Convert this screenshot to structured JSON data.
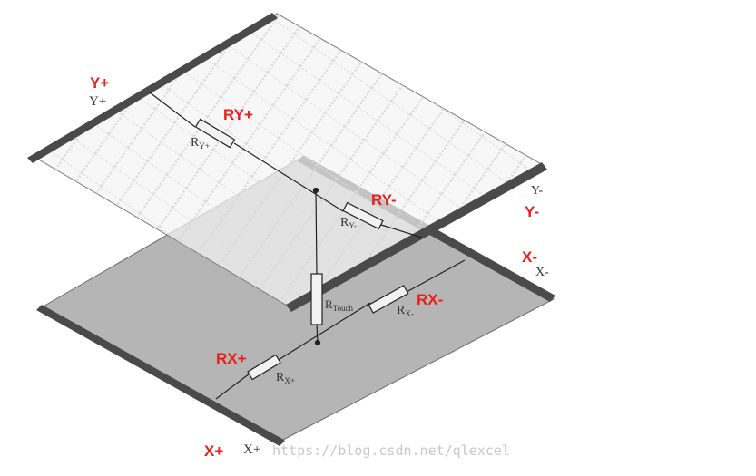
{
  "diagram": {
    "red_labels": {
      "y_plus": "Y+",
      "ry_plus": "RY+",
      "ry_minus": "RY-",
      "y_minus": "Y-",
      "x_minus": "X-",
      "rx_minus": "RX-",
      "rx_plus": "RX+",
      "x_plus": "X+"
    },
    "scan_labels": {
      "y_plus": "Y+",
      "y_minus": "Y-",
      "x_minus": "X-",
      "x_plus": "X+"
    },
    "resistor_labels": {
      "r_y_plus": "R",
      "r_y_plus_sub": "Y+",
      "r_y_minus": "R",
      "r_y_minus_sub": "Y-",
      "r_touch": "R",
      "r_touch_sub": "Touch",
      "r_x_minus": "R",
      "r_x_minus_sub": "X-",
      "r_x_plus": "R",
      "r_x_plus_sub": "X+"
    },
    "watermark": "https://blog.csdn.net/qlexcel",
    "colors": {
      "bottom_layer": "#b4b4b4",
      "top_layer": "#f6f6f6",
      "electrode": "#4a4a4a",
      "red_label": "#e8201c"
    }
  }
}
